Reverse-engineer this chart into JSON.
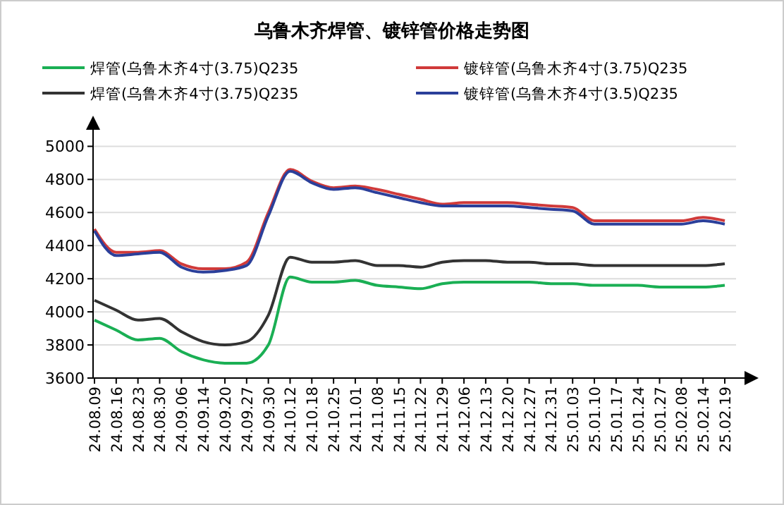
{
  "chart_data": {
    "type": "line",
    "title": "乌鲁木齐焊管、镀锌管价格走势图",
    "categories": [
      "24.08.09",
      "24.08.16",
      "24.08.23",
      "24.08.30",
      "24.09.06",
      "24.09.14",
      "24.09.20",
      "24.09.27",
      "24.09.30",
      "24.10.12",
      "24.10.18",
      "24.10.25",
      "24.11.01",
      "24.11.08",
      "24.11.15",
      "24.11.22",
      "24.11.29",
      "24.12.06",
      "24.12.13",
      "24.12.20",
      "24.12.27",
      "24.12.31",
      "25.01.03",
      "25.01.10",
      "25.01.17",
      "25.01.24",
      "25.01.27",
      "25.02.08",
      "25.02.14",
      "25.02.19"
    ],
    "series": [
      {
        "name": "焊管(乌鲁木齐4寸(3.75)Q235",
        "color": "#1aaf54",
        "values": [
          3950,
          3890,
          3830,
          3840,
          3760,
          3710,
          3690,
          3690,
          3800,
          4210,
          4180,
          4180,
          4190,
          4160,
          4150,
          4140,
          4170,
          4180,
          4180,
          4180,
          4180,
          4170,
          4170,
          4160,
          4160,
          4160,
          4150,
          4150,
          4150,
          4160
        ]
      },
      {
        "name": "镀锌管(乌鲁木齐4寸(3.75)Q235",
        "color": "#d03a3a",
        "values": [
          4500,
          4360,
          4360,
          4370,
          4290,
          4260,
          4260,
          4300,
          4600,
          4860,
          4790,
          4750,
          4760,
          4740,
          4710,
          4680,
          4650,
          4660,
          4660,
          4660,
          4650,
          4640,
          4630,
          4550,
          4550,
          4550,
          4550,
          4550,
          4570,
          4550
        ]
      },
      {
        "name": "焊管(乌鲁木齐4寸(3.75)Q235",
        "color": "#333333",
        "values": [
          4070,
          4010,
          3950,
          3960,
          3880,
          3820,
          3800,
          3820,
          3980,
          4330,
          4300,
          4300,
          4310,
          4280,
          4280,
          4270,
          4300,
          4310,
          4310,
          4300,
          4300,
          4290,
          4290,
          4280,
          4280,
          4280,
          4280,
          4280,
          4280,
          4290
        ]
      },
      {
        "name": "镀锌管(乌鲁木齐4寸(3.5)Q235",
        "color": "#2b3f9a",
        "values": [
          4490,
          4340,
          4350,
          4360,
          4270,
          4240,
          4250,
          4280,
          4580,
          4850,
          4780,
          4740,
          4750,
          4720,
          4690,
          4660,
          4640,
          4640,
          4640,
          4640,
          4630,
          4620,
          4610,
          4530,
          4530,
          4530,
          4530,
          4530,
          4550,
          4530
        ]
      }
    ],
    "ylim": [
      3600,
      5100
    ],
    "yticks": [
      3600,
      3800,
      4000,
      4200,
      4400,
      4600,
      4800,
      5000
    ],
    "grid": "y",
    "legend": "top",
    "marker": "none",
    "line_style": "solid"
  }
}
